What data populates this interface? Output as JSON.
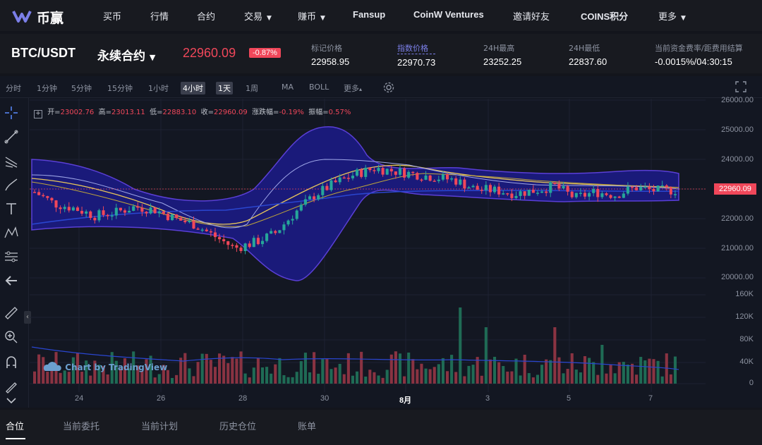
{
  "brand": {
    "name": "币赢"
  },
  "nav": {
    "items": [
      {
        "label": "买币",
        "caret": ""
      },
      {
        "label": "行情",
        "caret": ""
      },
      {
        "label": "合约",
        "caret": ""
      },
      {
        "label": "交易",
        "caret": "▼"
      },
      {
        "label": "赚币",
        "caret": "▼"
      },
      {
        "label": "Fansup",
        "caret": ""
      },
      {
        "label": "CoinW Ventures",
        "caret": ""
      },
      {
        "label": "邀请好友",
        "caret": ""
      },
      {
        "label": "COINS积分",
        "caret": ""
      },
      {
        "label": "更多",
        "caret": "▼"
      }
    ]
  },
  "ticker": {
    "pair": "BTC/USDT",
    "contract": "永续合约",
    "price": "22960.09",
    "change_pct": "-0.87%",
    "stats": [
      {
        "label": "标记价格",
        "value": "22958.95"
      },
      {
        "label": "指数价格",
        "value": "22970.73"
      },
      {
        "label": "24H最高",
        "value": "23252.25"
      },
      {
        "label": "24H最低",
        "value": "22837.60"
      },
      {
        "label": "当前资金费率/距费用结算",
        "value": "-0.0015%/04:30:15"
      }
    ]
  },
  "toolbar": {
    "intervals": [
      "分时",
      "1分钟",
      "5分钟",
      "15分钟",
      "1小时",
      "4小时",
      "1天",
      "1周"
    ],
    "active_interval": "4小时",
    "indicators": [
      "MA",
      "BOLL",
      "更多"
    ]
  },
  "ohlc": {
    "open_label": "开=",
    "open": "23002.76",
    "high_label": "高=",
    "high": "23013.11",
    "low_label": "低=",
    "low": "22883.10",
    "close_label": "收=",
    "close": "22960.09",
    "chg_label": "涨跌幅=",
    "chg": "-0.19%",
    "amp_label": "振幅=",
    "amp": "0.57%"
  },
  "watermark": "Chart by TradingView",
  "chart_data": {
    "type": "candlestick",
    "y_ticks": [
      "26000.00",
      "25000.00",
      "24000.00",
      "23000.00",
      "22000.00",
      "21000.00",
      "20000.00"
    ],
    "volume_ticks": [
      "160K",
      "120K",
      "80K",
      "40K",
      "0"
    ],
    "x_ticks": [
      "24",
      "26",
      "28",
      "30",
      "8月",
      "3",
      "5",
      "7"
    ],
    "last_price": "22960.09",
    "ylim": [
      19500,
      26000
    ],
    "close_path": [
      22900,
      22500,
      22350,
      22100,
      22200,
      22400,
      22300,
      22000,
      21800,
      21400,
      21000,
      21200,
      21500,
      22200,
      22800,
      23200,
      23500,
      23700,
      23600,
      23500,
      23400,
      23300,
      23000,
      22950,
      22850,
      22950,
      23100,
      22700,
      22900,
      22800,
      23050,
      22950,
      22960
    ],
    "colors": {
      "up": "#26a69a",
      "down": "#f0475a",
      "accent": "#7b7fe8",
      "bg": "#131722"
    }
  },
  "bottom_tabs": [
    "合位",
    "当前委托",
    "当前计划",
    "历史仓位",
    "账单"
  ]
}
